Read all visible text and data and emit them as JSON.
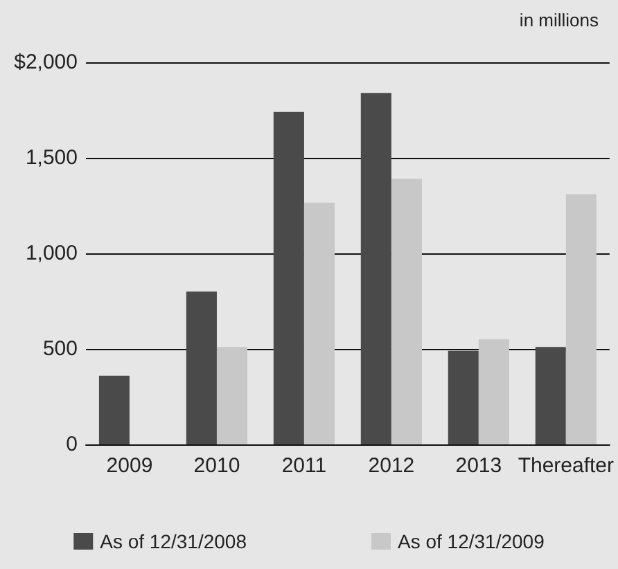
{
  "chart_data": {
    "type": "bar",
    "annotations": [
      "in millions"
    ],
    "categories": [
      "2009",
      "2010",
      "2011",
      "2012",
      "2013",
      "Thereafter"
    ],
    "series": [
      {
        "name": "As of 12/31/2008",
        "color": "#4a4a4a",
        "values": [
          360,
          800,
          1740,
          1840,
          490,
          510
        ]
      },
      {
        "name": "As of 12/31/2009",
        "color": "#c8c8c8",
        "values": [
          null,
          510,
          1265,
          1390,
          550,
          1310
        ]
      }
    ],
    "ylim": [
      0,
      2000
    ],
    "yticks": [
      {
        "value": 0,
        "label": "0"
      },
      {
        "value": 500,
        "label": "500"
      },
      {
        "value": 1000,
        "label": "1,000"
      },
      {
        "value": 1500,
        "label": "1,500"
      },
      {
        "value": 2000,
        "label": "$2,000"
      }
    ],
    "grid": "y",
    "legend": "bottom"
  }
}
